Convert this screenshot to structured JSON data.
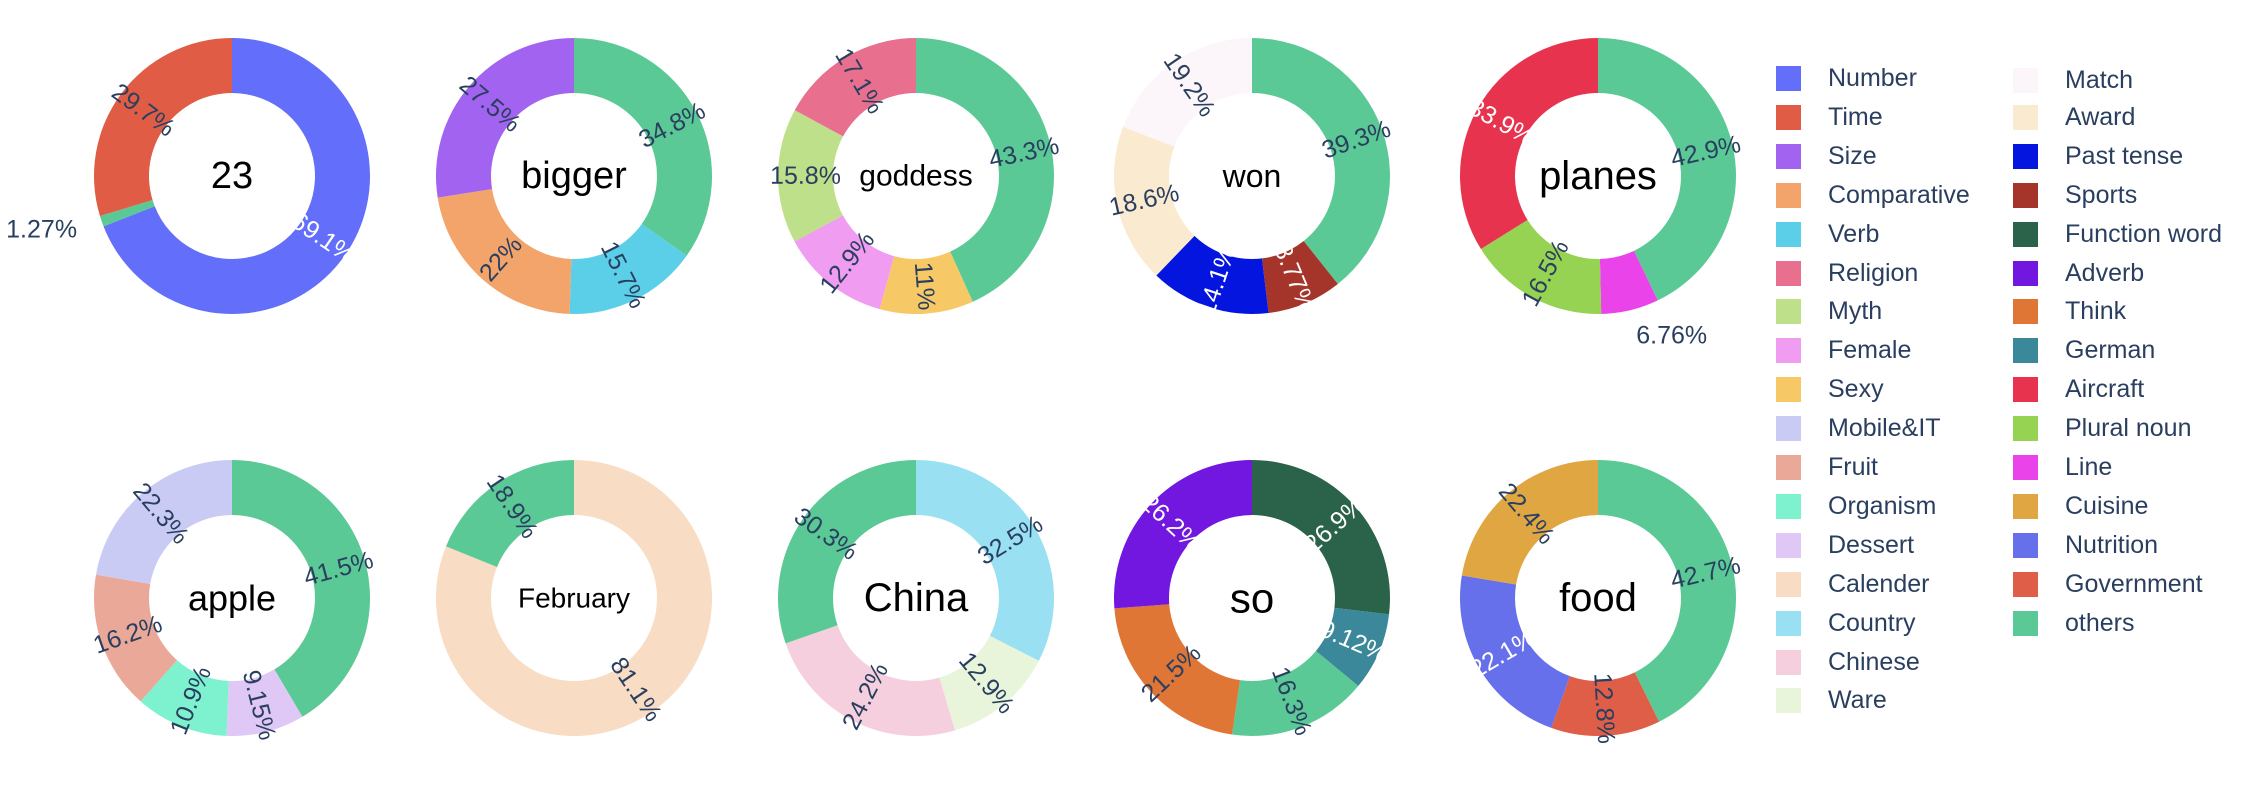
{
  "chart_data": [
    {
      "type": "pie",
      "center_label": "23",
      "slices": [
        {
          "category": "Number",
          "value": 69.1,
          "label": "69.1%"
        },
        {
          "category": "others",
          "value": 1.27,
          "label": "1.27%"
        },
        {
          "category": "Time",
          "value": 29.7,
          "label": "29.7%"
        }
      ]
    },
    {
      "type": "pie",
      "center_label": "bigger",
      "slices": [
        {
          "category": "others",
          "value": 34.8,
          "label": "34.8%"
        },
        {
          "category": "Verb",
          "value": 15.7,
          "label": "15.7%"
        },
        {
          "category": "Comparative",
          "value": 22,
          "label": "22%"
        },
        {
          "category": "Size",
          "value": 27.5,
          "label": "27.5%"
        }
      ]
    },
    {
      "type": "pie",
      "center_label": "goddess",
      "slices": [
        {
          "category": "others",
          "value": 43.3,
          "label": "43.3%"
        },
        {
          "category": "Sexy",
          "value": 11,
          "label": "11%"
        },
        {
          "category": "Female",
          "value": 12.9,
          "label": "12.9%"
        },
        {
          "category": "Myth",
          "value": 15.8,
          "label": "15.8%"
        },
        {
          "category": "Religion",
          "value": 17.1,
          "label": "17.1%"
        }
      ]
    },
    {
      "type": "pie",
      "center_label": "won",
      "slices": [
        {
          "category": "others",
          "value": 39.3,
          "label": "39.3%"
        },
        {
          "category": "Sports",
          "value": 8.77,
          "label": "8.77%"
        },
        {
          "category": "Past tense",
          "value": 14.1,
          "label": "14.1%"
        },
        {
          "category": "Award",
          "value": 18.6,
          "label": "18.6%"
        },
        {
          "category": "Match",
          "value": 19.2,
          "label": "19.2%"
        }
      ]
    },
    {
      "type": "pie",
      "center_label": "planes",
      "slices": [
        {
          "category": "others",
          "value": 42.9,
          "label": "42.9%"
        },
        {
          "category": "Line",
          "value": 6.76,
          "label": "6.76%"
        },
        {
          "category": "Plural noun",
          "value": 16.5,
          "label": "16.5%"
        },
        {
          "category": "Aircraft",
          "value": 33.9,
          "label": "33.9%"
        }
      ]
    },
    {
      "type": "pie",
      "center_label": "apple",
      "slices": [
        {
          "category": "others",
          "value": 41.5,
          "label": "41.5%"
        },
        {
          "category": "Dessert",
          "value": 9.15,
          "label": "9.15%"
        },
        {
          "category": "Organism",
          "value": 10.9,
          "label": "10.9%"
        },
        {
          "category": "Fruit",
          "value": 16.2,
          "label": "16.2%"
        },
        {
          "category": "Mobile&IT",
          "value": 22.3,
          "label": "22.3%"
        }
      ]
    },
    {
      "type": "pie",
      "center_label": "February",
      "slices": [
        {
          "category": "Calender",
          "value": 81.1,
          "label": "81.1%"
        },
        {
          "category": "others",
          "value": 18.9,
          "label": "18.9%"
        }
      ]
    },
    {
      "type": "pie",
      "center_label": "China",
      "slices": [
        {
          "category": "Country",
          "value": 32.5,
          "label": "32.5%"
        },
        {
          "category": "Ware",
          "value": 12.9,
          "label": "12.9%"
        },
        {
          "category": "Chinese",
          "value": 24.2,
          "label": "24.2%"
        },
        {
          "category": "others",
          "value": 30.3,
          "label": "30.3%"
        }
      ]
    },
    {
      "type": "pie",
      "center_label": "so",
      "slices": [
        {
          "category": "Function word",
          "value": 26.9,
          "label": "26.9%"
        },
        {
          "category": "German",
          "value": 9.12,
          "label": "9.12%"
        },
        {
          "category": "others",
          "value": 16.3,
          "label": "16.3%"
        },
        {
          "category": "Think",
          "value": 21.5,
          "label": "21.5%"
        },
        {
          "category": "Adverb",
          "value": 26.2,
          "label": "26.2%"
        }
      ]
    },
    {
      "type": "pie",
      "center_label": "food",
      "slices": [
        {
          "category": "others",
          "value": 42.7,
          "label": "42.7%"
        },
        {
          "category": "Government",
          "value": 12.8,
          "label": "12.8%"
        },
        {
          "category": "Nutrition",
          "value": 22.1,
          "label": "22.1%"
        },
        {
          "category": "Cuisine",
          "value": 22.4,
          "label": "22.4%"
        }
      ]
    }
  ],
  "legend": [
    {
      "name": "Number",
      "color": "#636efa"
    },
    {
      "name": "Time",
      "color": "#e05c45"
    },
    {
      "name": "Size",
      "color": "#a163f0"
    },
    {
      "name": "Comparative",
      "color": "#f2a46a"
    },
    {
      "name": "Verb",
      "color": "#5ccfe8"
    },
    {
      "name": "Religion",
      "color": "#e8708e"
    },
    {
      "name": "Myth",
      "color": "#bfe08a"
    },
    {
      "name": "Female",
      "color": "#f09cf0"
    },
    {
      "name": "Sexy",
      "color": "#f7c866"
    },
    {
      "name": "Mobile&IT",
      "color": "#c9cbf5"
    },
    {
      "name": "Fruit",
      "color": "#eaa898"
    },
    {
      "name": "Organism",
      "color": "#7ef2cf"
    },
    {
      "name": "Dessert",
      "color": "#dfc8f5"
    },
    {
      "name": "Calender",
      "color": "#f8dcc4"
    },
    {
      "name": "Country",
      "color": "#99e1f2"
    },
    {
      "name": "Chinese",
      "color": "#f5cfdd"
    },
    {
      "name": "Ware",
      "color": "#e9f5da"
    },
    {
      "name": "Match",
      "color": "#fcf5fa"
    },
    {
      "name": "Award",
      "color": "#faead0"
    },
    {
      "name": "Past tense",
      "color": "#0515e0"
    },
    {
      "name": "Sports",
      "color": "#a5342a"
    },
    {
      "name": "Function word",
      "color": "#2a6349"
    },
    {
      "name": "Adverb",
      "color": "#7117e0"
    },
    {
      "name": "Think",
      "color": "#e07636"
    },
    {
      "name": "German",
      "color": "#3a8899"
    },
    {
      "name": "Aircraft",
      "color": "#e8334f"
    },
    {
      "name": "Plural noun",
      "color": "#96d352"
    },
    {
      "name": "Line",
      "color": "#ea43e9"
    },
    {
      "name": "Cuisine",
      "color": "#e0a641"
    },
    {
      "name": "Nutrition",
      "color": "#6670eb"
    },
    {
      "name": "Government",
      "color": "#df5e48"
    },
    {
      "name": "others",
      "color": "#5bc995"
    }
  ]
}
